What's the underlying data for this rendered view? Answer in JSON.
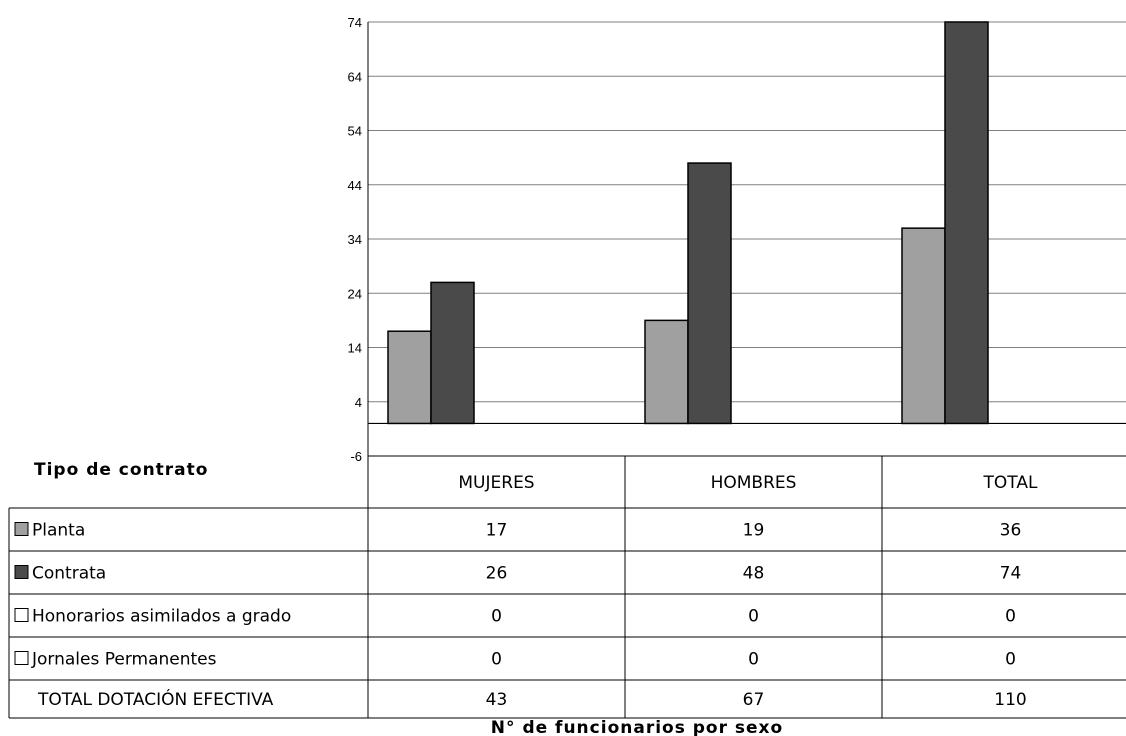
{
  "chart_data": {
    "type": "bar",
    "categories": [
      "MUJERES",
      "HOMBRES",
      "TOTAL"
    ],
    "series": [
      {
        "name": "Planta",
        "values": [
          17,
          19,
          36
        ],
        "color": "#a0a0a0"
      },
      {
        "name": "Contrata",
        "values": [
          26,
          48,
          74
        ],
        "color": "#4a4a4a"
      },
      {
        "name": "Honorarios asimilados a grado",
        "values": [
          0,
          0,
          0
        ],
        "color": "#ffffff"
      },
      {
        "name": "Jornales Permanentes",
        "values": [
          0,
          0,
          0
        ],
        "color": "#ffffff"
      }
    ],
    "yticks": [
      -6,
      4,
      14,
      24,
      34,
      44,
      54,
      64,
      74
    ],
    "ylim": [
      -6,
      74
    ],
    "grid": true,
    "table": {
      "header_label": "Tipo de contrato",
      "total_row": {
        "label": "TOTAL DOTACIÓN EFECTIVA",
        "values": [
          43,
          67,
          110
        ]
      }
    },
    "xlabel": "N° de funcionarios por sexo"
  }
}
